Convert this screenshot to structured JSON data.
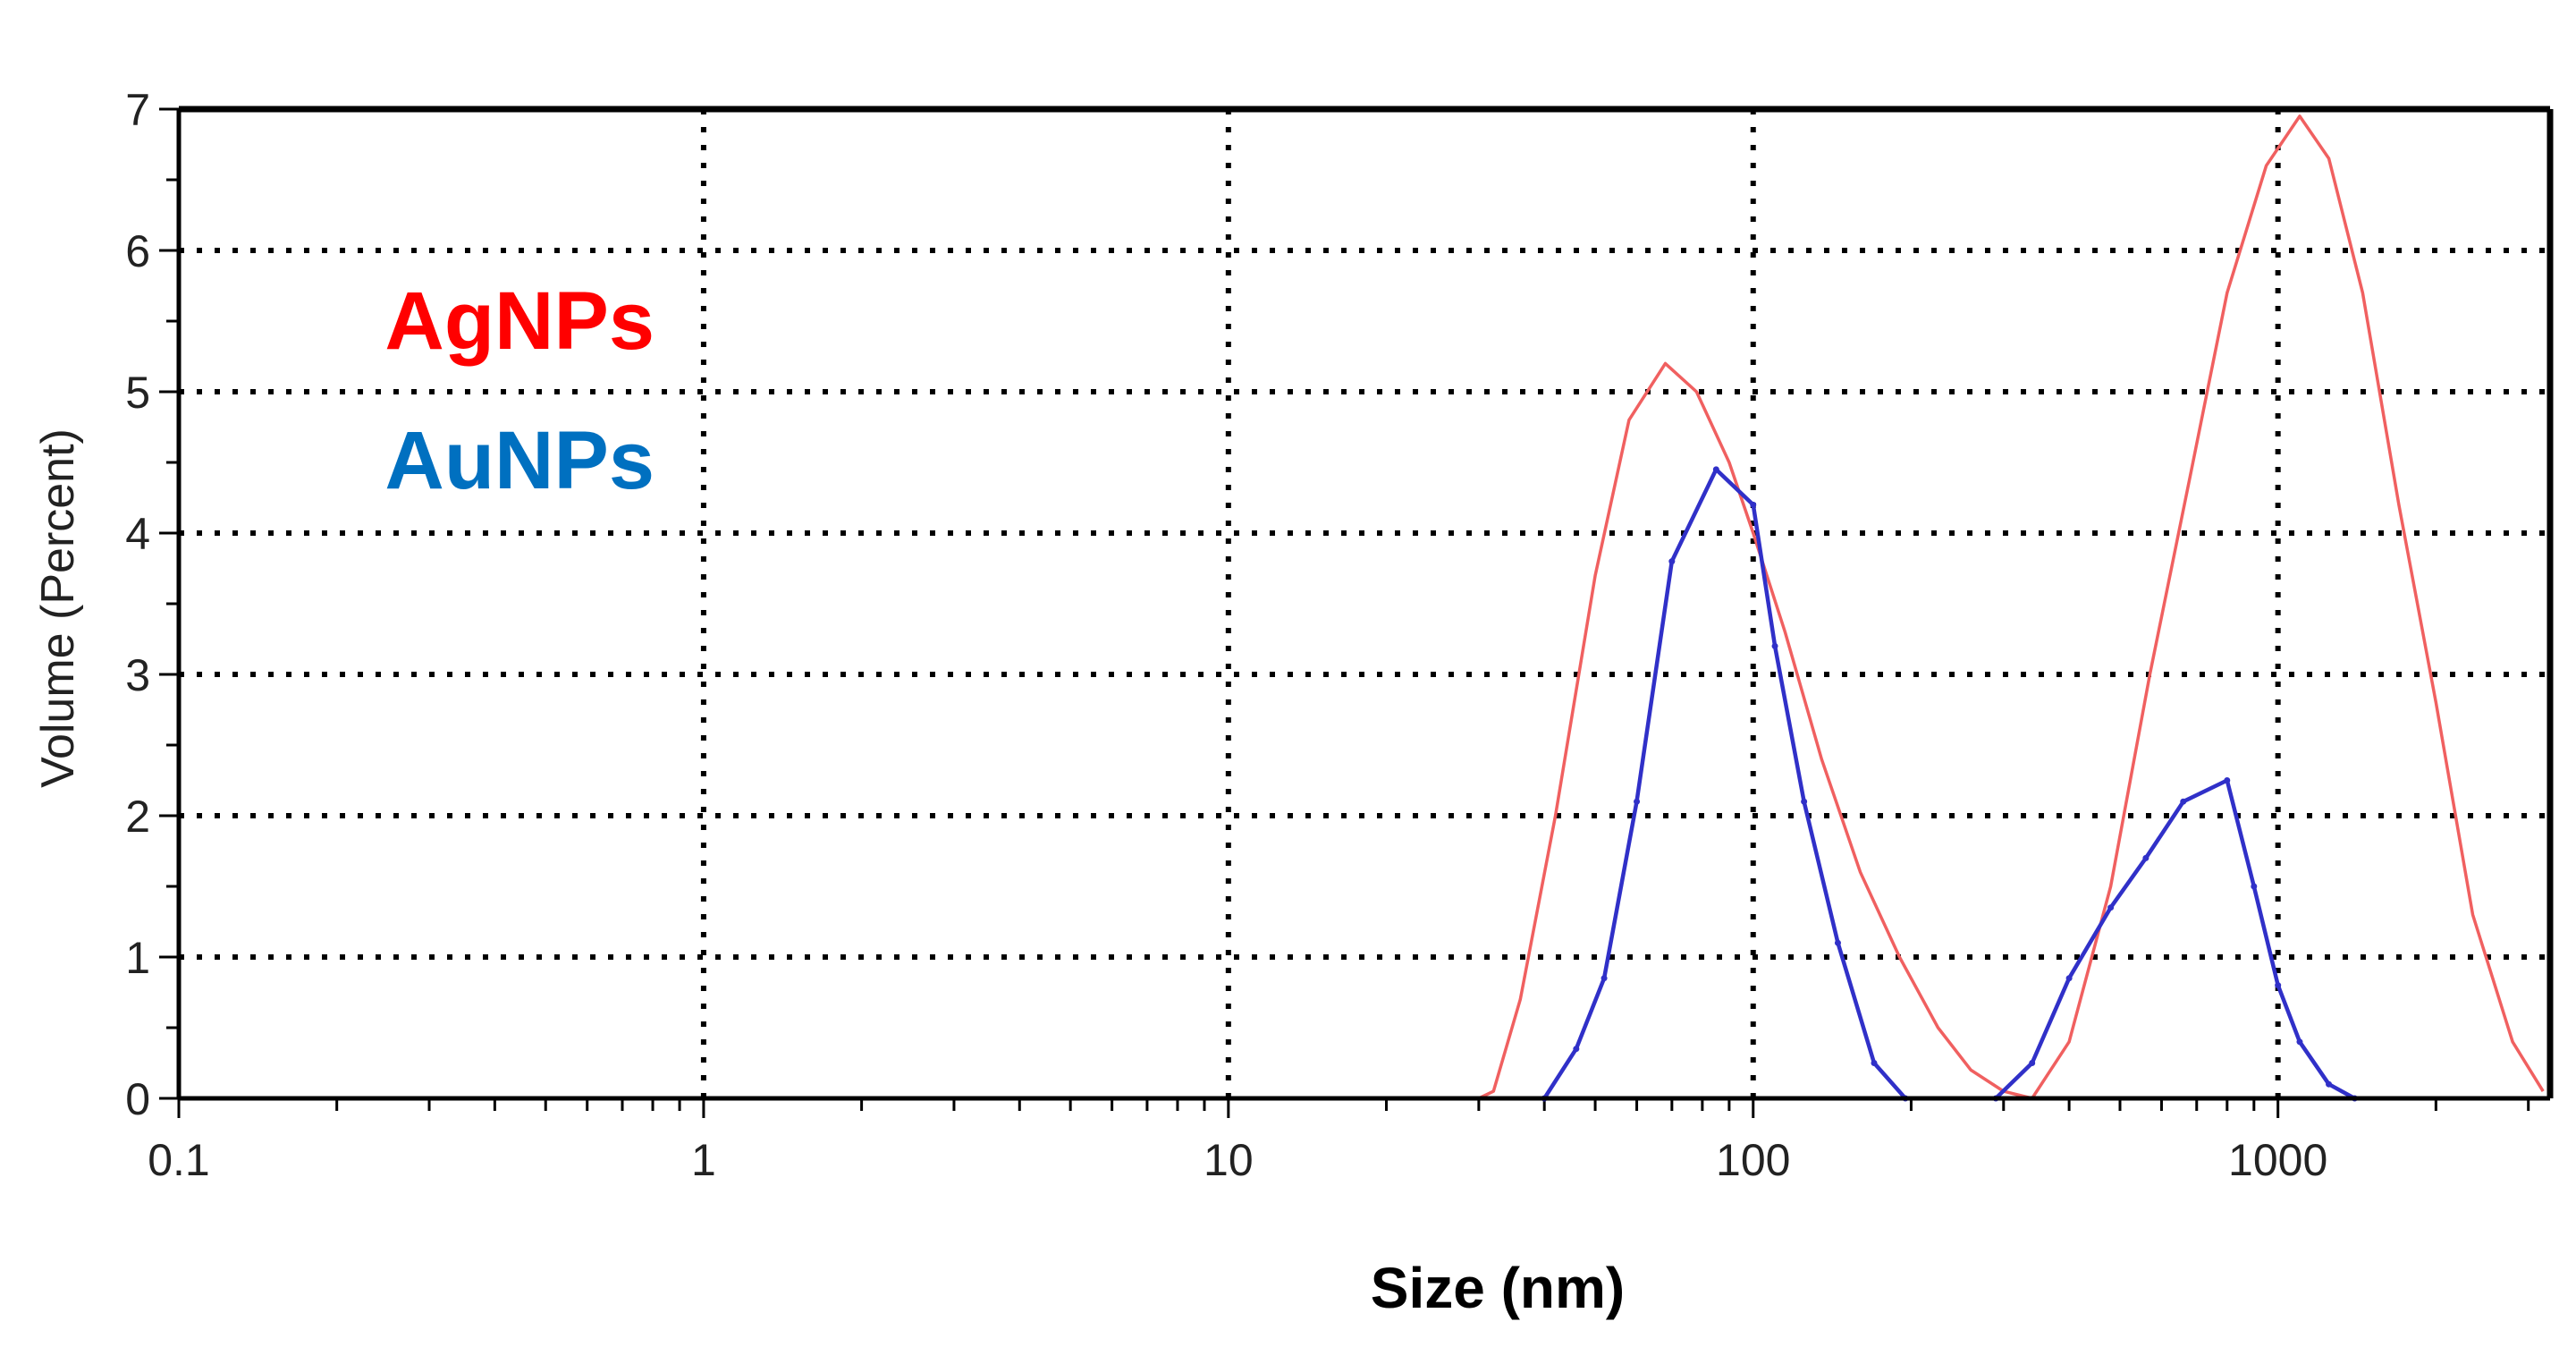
{
  "chart_data": {
    "type": "line",
    "title": "",
    "xlabel": "Size (nm)",
    "ylabel": "Volume (Percent)",
    "xscale": "log",
    "xlim": [
      0.1,
      3300
    ],
    "ylim": [
      0,
      7
    ],
    "xticks": [
      0.1,
      1,
      10,
      100,
      1000
    ],
    "xtick_labels": [
      "0.1",
      "1",
      "10",
      "100",
      "1000"
    ],
    "yticks": [
      0,
      1,
      2,
      3,
      4,
      5,
      6,
      7
    ],
    "ytick_labels": [
      "0",
      "1",
      "2",
      "3",
      "4",
      "5",
      "6",
      "7"
    ],
    "grid": true,
    "legend_position": "top-left",
    "series": [
      {
        "name": "AgNPs",
        "color": "#ff0000",
        "line_color": "#f06060",
        "points": [
          [
            0.4,
            0
          ],
          [
            1,
            0
          ],
          [
            10,
            0
          ],
          [
            30,
            0
          ],
          [
            32,
            0.05
          ],
          [
            36,
            0.7
          ],
          [
            42,
            2.0
          ],
          [
            50,
            3.7
          ],
          [
            58,
            4.8
          ],
          [
            68,
            5.2
          ],
          [
            78,
            5.0
          ],
          [
            90,
            4.5
          ],
          [
            100,
            4.0
          ],
          [
            115,
            3.3
          ],
          [
            135,
            2.4
          ],
          [
            160,
            1.6
          ],
          [
            190,
            1.0
          ],
          [
            225,
            0.5
          ],
          [
            260,
            0.2
          ],
          [
            300,
            0.05
          ],
          [
            340,
            0.0
          ],
          [
            400,
            0.4
          ],
          [
            480,
            1.5
          ],
          [
            570,
            3.0
          ],
          [
            680,
            4.4
          ],
          [
            800,
            5.7
          ],
          [
            950,
            6.6
          ],
          [
            1100,
            6.95
          ],
          [
            1250,
            6.65
          ],
          [
            1450,
            5.7
          ],
          [
            1700,
            4.2
          ],
          [
            2000,
            2.8
          ],
          [
            2350,
            1.3
          ],
          [
            2800,
            0.4
          ],
          [
            3200,
            0.05
          ]
        ]
      },
      {
        "name": "AuNPs",
        "color": "#0070c0",
        "line_color": "#3030c8",
        "points": [
          [
            40,
            0
          ],
          [
            46,
            0.35
          ],
          [
            52,
            0.85
          ],
          [
            60,
            2.1
          ],
          [
            70,
            3.8
          ],
          [
            85,
            4.45
          ],
          [
            100,
            4.2
          ],
          [
            110,
            3.2
          ],
          [
            125,
            2.1
          ],
          [
            145,
            1.1
          ],
          [
            170,
            0.25
          ],
          [
            195,
            0
          ],
          [
            290,
            0
          ],
          [
            340,
            0.25
          ],
          [
            400,
            0.85
          ],
          [
            480,
            1.35
          ],
          [
            560,
            1.7
          ],
          [
            660,
            2.1
          ],
          [
            800,
            2.25
          ],
          [
            900,
            1.5
          ],
          [
            1000,
            0.8
          ],
          [
            1100,
            0.4
          ],
          [
            1250,
            0.1
          ],
          [
            1400,
            0
          ]
        ]
      }
    ]
  }
}
